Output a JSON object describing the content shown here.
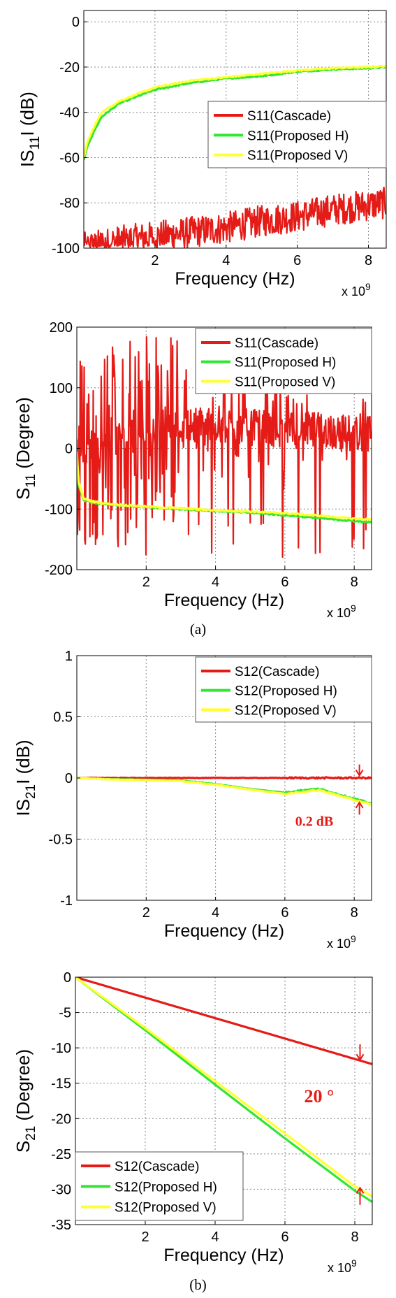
{
  "captions": [
    "(a)",
    "(b)"
  ],
  "colors": {
    "cascade": "#e41b17",
    "proposed_h": "#33e633",
    "proposed_v": "#ffff33",
    "annotation": "#e41b17"
  },
  "chart_data": [
    {
      "type": "line",
      "xlabel": "Frequency (Hz)",
      "ylabel_parts": [
        "IS",
        "11",
        "I (dB)"
      ],
      "x_multiplier": "x 10",
      "x_multiplier_exp": "9",
      "xlim": [
        0,
        8.5
      ],
      "ylim": [
        -100,
        5
      ],
      "xticks": [
        "2",
        "4",
        "6",
        "8"
      ],
      "yticks": [
        "0",
        "-20",
        "-40",
        "-60",
        "-80",
        "-100"
      ],
      "grid": true,
      "legend": "middle-right",
      "series": [
        {
          "name": "S11(Cascade)",
          "color": "#e41b17",
          "noisy": true,
          "x": [
            0,
            1,
            2,
            3,
            4,
            5,
            6,
            7,
            8,
            8.5
          ],
          "y": [
            -100,
            -97,
            -95,
            -93,
            -91,
            -88,
            -86,
            -83,
            -81,
            -80
          ]
        },
        {
          "name": "S11(Proposed H)",
          "color": "#33e633",
          "x": [
            0,
            0.1,
            0.3,
            0.5,
            1,
            1.5,
            2,
            3,
            4,
            5,
            6,
            7,
            8,
            8.5
          ],
          "y": [
            -61,
            -55,
            -48,
            -42,
            -36,
            -33,
            -30,
            -27,
            -25,
            -24,
            -22,
            -21,
            -20.5,
            -20
          ]
        },
        {
          "name": "S11(Proposed V)",
          "color": "#ffff33",
          "x": [
            0,
            0.1,
            0.3,
            0.5,
            1,
            1.5,
            2,
            3,
            4,
            5,
            6,
            7,
            8,
            8.5
          ],
          "y": [
            -60,
            -53,
            -46,
            -40,
            -35,
            -32,
            -29,
            -26,
            -24.5,
            -23,
            -21.5,
            -20.5,
            -20,
            -19.5
          ]
        }
      ]
    },
    {
      "type": "line",
      "xlabel": "Frequency (Hz)",
      "ylabel_parts": [
        "S",
        "11",
        " (Degree)"
      ],
      "x_multiplier": "x 10",
      "x_multiplier_exp": "9",
      "xlim": [
        0,
        8.5
      ],
      "ylim": [
        -200,
        200
      ],
      "xticks": [
        "2",
        "4",
        "6",
        "8"
      ],
      "yticks": [
        "200",
        "100",
        "0",
        "-100",
        "-200"
      ],
      "grid": true,
      "legend": "top-right",
      "series": [
        {
          "name": "S11(Cascade)",
          "color": "#e41b17",
          "noisy": true,
          "x": [
            0,
            1,
            2,
            3,
            4,
            5,
            6,
            7,
            8,
            8.5
          ],
          "y": [
            0,
            10,
            30,
            40,
            40,
            35,
            30,
            30,
            25,
            25
          ]
        },
        {
          "name": "S11(Proposed H)",
          "color": "#33e633",
          "x": [
            0,
            0.05,
            0.2,
            0.5,
            1,
            2,
            3,
            4,
            5,
            6,
            7,
            8,
            8.5
          ],
          "y": [
            -10,
            -60,
            -85,
            -90,
            -93,
            -97,
            -100,
            -103,
            -106,
            -110,
            -115,
            -120,
            -122
          ]
        },
        {
          "name": "S11(Proposed V)",
          "color": "#ffff33",
          "x": [
            0,
            0.05,
            0.2,
            0.5,
            1,
            2,
            3,
            4,
            5,
            6,
            7,
            8,
            8.5
          ],
          "y": [
            -5,
            -55,
            -83,
            -88,
            -92,
            -96,
            -99,
            -102,
            -104,
            -107,
            -111,
            -116,
            -117
          ]
        }
      ]
    },
    {
      "type": "line",
      "xlabel": "Frequency (Hz)",
      "ylabel_parts": [
        "IS",
        "21",
        "I (dB)"
      ],
      "x_multiplier": "x 10",
      "x_multiplier_exp": "9",
      "xlim": [
        0,
        8.5
      ],
      "ylim": [
        -1,
        1
      ],
      "xticks": [
        "2",
        "4",
        "6",
        "8"
      ],
      "yticks": [
        "1",
        "0.5",
        "0",
        "-0.5",
        "-1"
      ],
      "grid": true,
      "legend": "top-right",
      "annotation": "0.2 dB",
      "series": [
        {
          "name": "S12(Cascade)",
          "color": "#e41b17",
          "x": [
            0,
            8.5
          ],
          "y": [
            0,
            0
          ]
        },
        {
          "name": "S12(Proposed H)",
          "color": "#33e633",
          "x": [
            0,
            1,
            2,
            3,
            4,
            5,
            6,
            6.5,
            7,
            7.5,
            8,
            8.5
          ],
          "y": [
            0,
            -0.01,
            -0.015,
            -0.02,
            -0.05,
            -0.09,
            -0.12,
            -0.1,
            -0.09,
            -0.13,
            -0.17,
            -0.21
          ]
        },
        {
          "name": "S12(Proposed V)",
          "color": "#ffff33",
          "x": [
            0,
            1,
            2,
            3,
            4,
            5,
            6,
            6.5,
            7,
            7.5,
            8,
            8.5
          ],
          "y": [
            0,
            -0.012,
            -0.018,
            -0.025,
            -0.055,
            -0.095,
            -0.13,
            -0.115,
            -0.1,
            -0.14,
            -0.18,
            -0.22
          ]
        }
      ]
    },
    {
      "type": "line",
      "xlabel": "Frequency (Hz)",
      "ylabel_parts": [
        "S",
        "21",
        " (Degree)"
      ],
      "x_multiplier": "x 10",
      "x_multiplier_exp": "9",
      "xlim": [
        0,
        8.5
      ],
      "ylim": [
        -35,
        0
      ],
      "xticks": [
        "2",
        "4",
        "6",
        "8"
      ],
      "yticks": [
        "0",
        "-5",
        "-10",
        "-15",
        "-20",
        "-25",
        "-30",
        "-35"
      ],
      "grid": true,
      "legend": "bottom-left",
      "annotation": "20 °",
      "series": [
        {
          "name": "S12(Cascade)",
          "color": "#e41b17",
          "x": [
            0,
            8.5
          ],
          "y": [
            0,
            -12.3
          ]
        },
        {
          "name": "S12(Proposed H)",
          "color": "#33e633",
          "x": [
            0,
            2,
            4,
            6,
            8,
            8.5
          ],
          "y": [
            0,
            -7.5,
            -15.2,
            -22.8,
            -30.2,
            -31.8
          ]
        },
        {
          "name": "S12(Proposed V)",
          "color": "#ffff33",
          "x": [
            0,
            2,
            4,
            6,
            8,
            8.5
          ],
          "y": [
            0,
            -7.2,
            -14.7,
            -22.1,
            -29.6,
            -31.0
          ]
        }
      ]
    }
  ]
}
